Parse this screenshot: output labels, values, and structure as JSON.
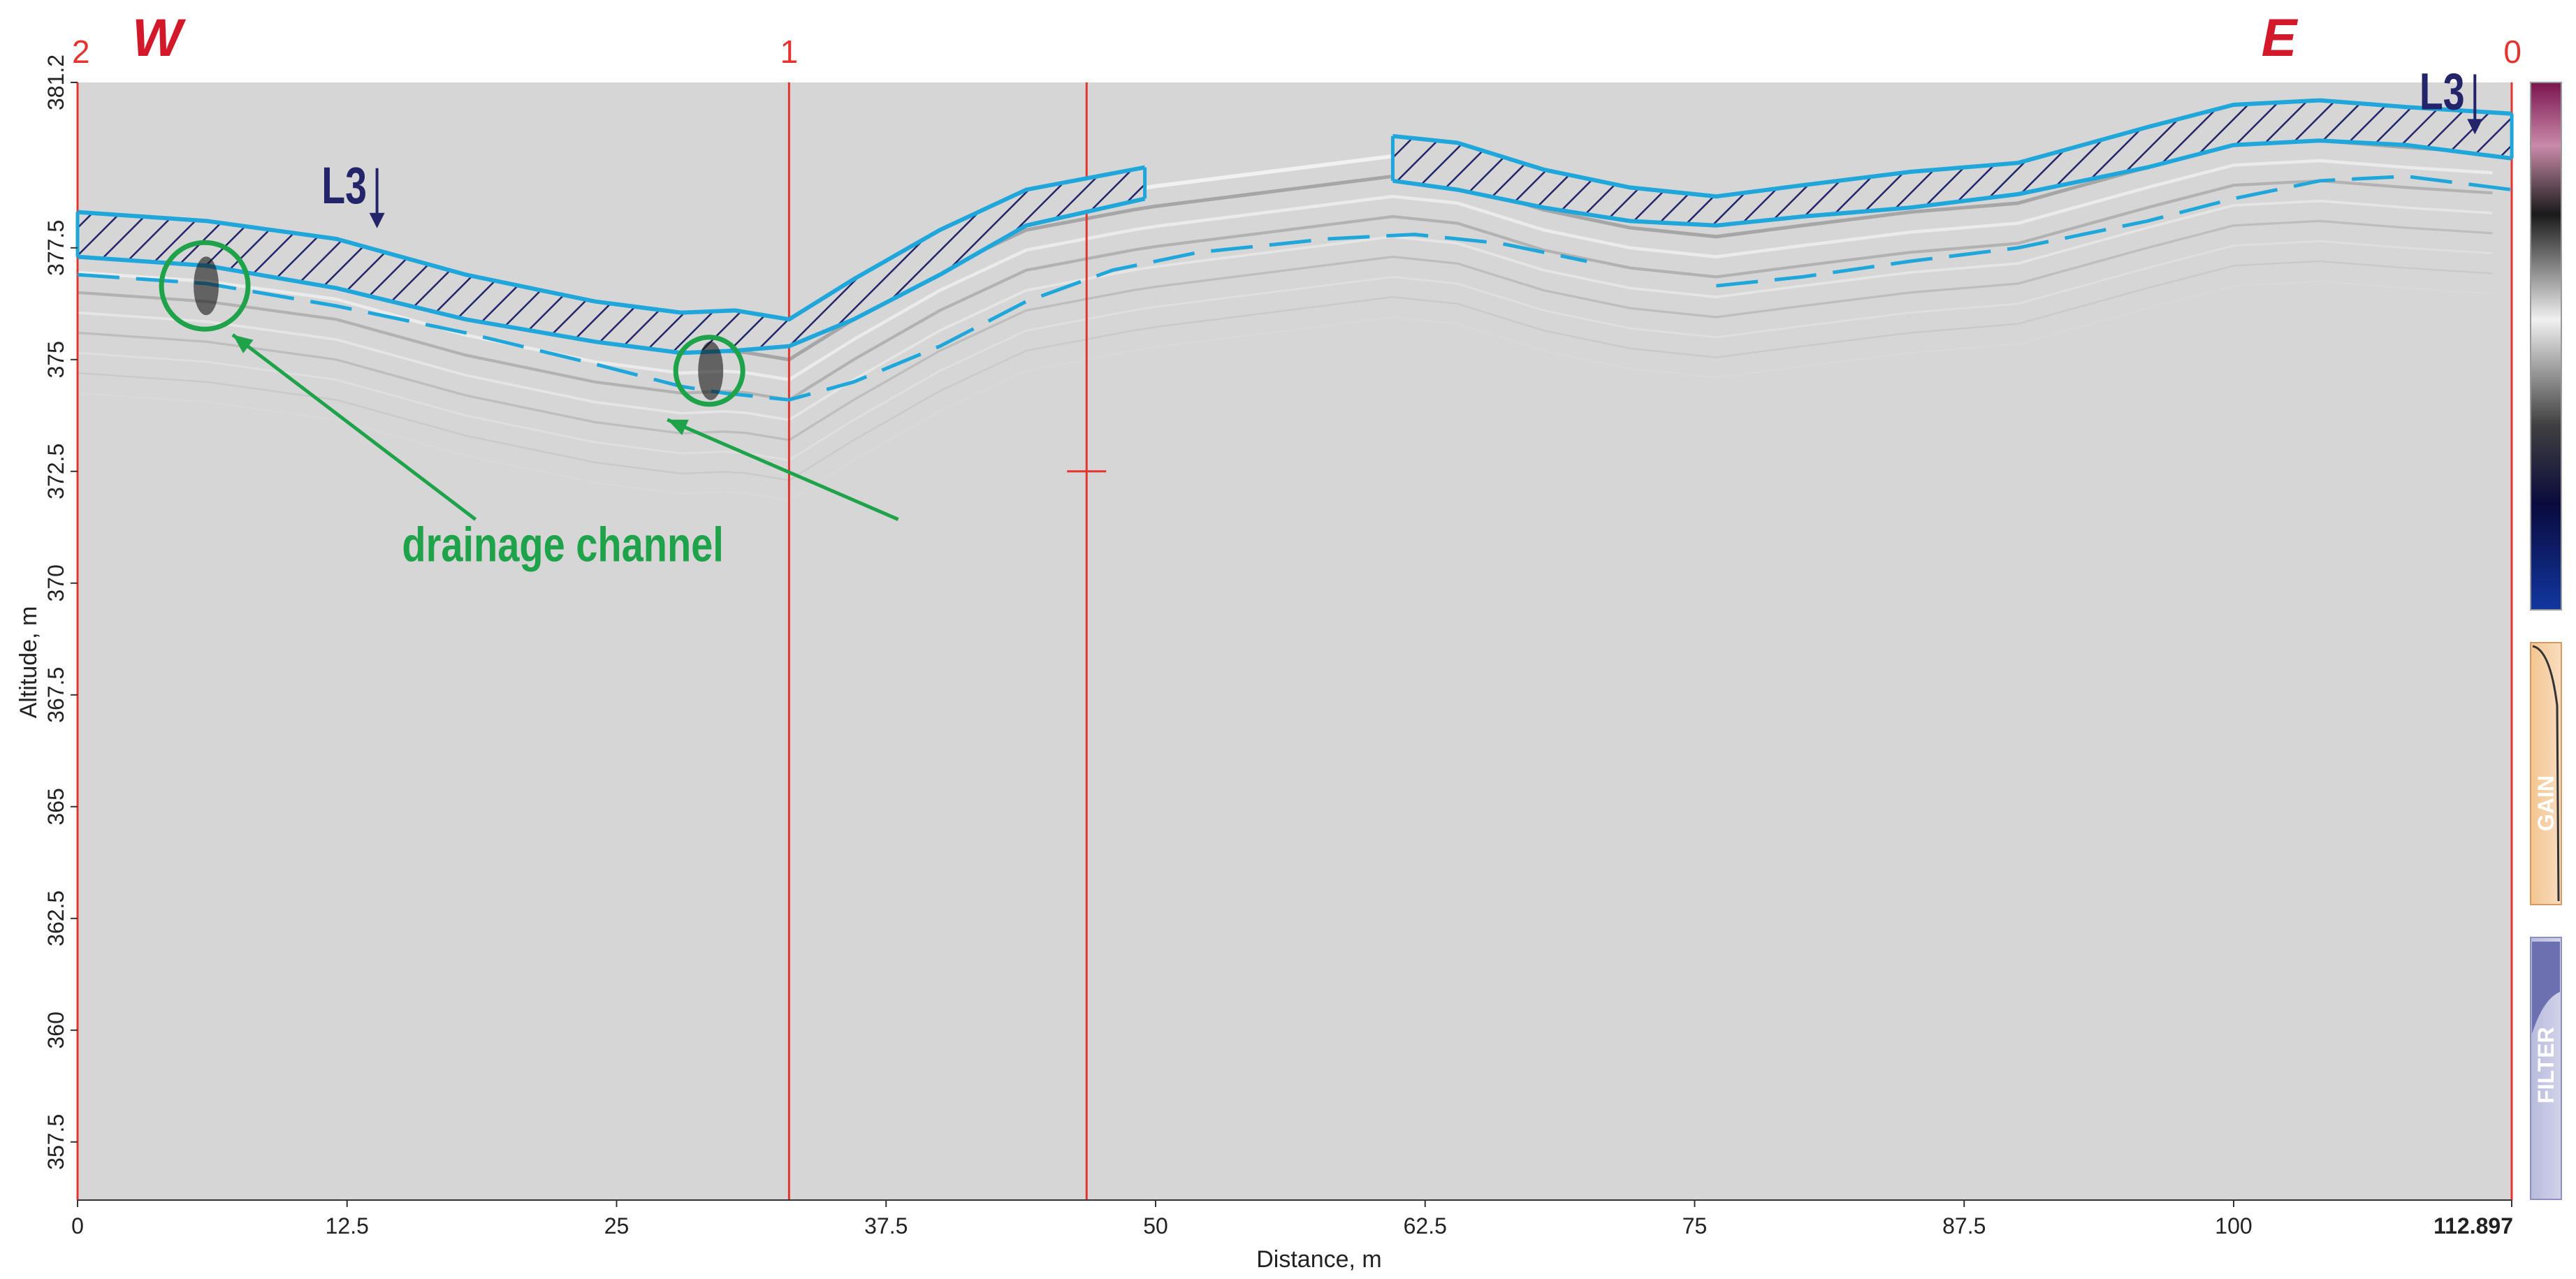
{
  "chart_data": {
    "type": "radargram",
    "xlabel": "Distance, m",
    "ylabel": "Altitude, m",
    "xlim": [
      0,
      112.897
    ],
    "ylim": [
      356.2,
      381.2
    ],
    "x_ticks": [
      "0",
      "12.5",
      "25",
      "37.5",
      "50",
      "62.5",
      "75",
      "87.5",
      "100",
      "112.897"
    ],
    "x_tick_values": [
      0,
      12.5,
      25,
      37.5,
      50,
      62.5,
      75,
      87.5,
      100,
      112.897
    ],
    "y_ticks": [
      "381.2",
      "377.5",
      "375",
      "372.5",
      "370",
      "367.5",
      "365",
      "362.5",
      "360",
      "357.5"
    ],
    "y_tick_values": [
      381.2,
      377.5,
      375,
      372.5,
      370,
      367.5,
      365,
      362.5,
      360,
      357.5
    ],
    "direction_labels": {
      "west": "W",
      "east": "E"
    },
    "markers": [
      {
        "label": "2",
        "x": 0
      },
      {
        "label": "1",
        "x": 33
      },
      {
        "label": "0",
        "x": 112.897
      }
    ],
    "cursor_x": 46.8,
    "cursor_tick_y": 372.5,
    "layer_label": "L3",
    "layer_label_positions": [
      [
        13.5,
        378.5
      ],
      [
        110.8,
        380.6
      ]
    ],
    "surface_segments": [
      [
        [
          0,
          378.3
        ],
        [
          6,
          378.1
        ],
        [
          12,
          377.7
        ],
        [
          18,
          376.9
        ],
        [
          24,
          376.3
        ],
        [
          28,
          376.05
        ],
        [
          30.5,
          376.1
        ],
        [
          33,
          375.9
        ],
        [
          36,
          376.8
        ],
        [
          40,
          377.9
        ],
        [
          44,
          378.8
        ],
        [
          49.5,
          379.3
        ]
      ],
      [
        [
          61,
          380.0
        ],
        [
          64,
          379.85
        ],
        [
          68,
          379.25
        ],
        [
          72,
          378.85
        ],
        [
          76,
          378.65
        ],
        [
          80,
          378.9
        ],
        [
          85,
          379.2
        ],
        [
          90,
          379.4
        ],
        [
          96,
          380.2
        ],
        [
          100,
          380.7
        ],
        [
          104,
          380.8
        ],
        [
          108,
          380.65
        ],
        [
          112.9,
          380.5
        ]
      ]
    ],
    "base_segments": [
      [
        [
          0,
          377.3
        ],
        [
          6,
          377.1
        ],
        [
          12,
          376.6
        ],
        [
          18,
          375.9
        ],
        [
          24,
          375.4
        ],
        [
          28,
          375.15
        ],
        [
          30.5,
          375.2
        ],
        [
          33,
          375.3
        ],
        [
          36,
          375.9
        ],
        [
          40,
          376.9
        ],
        [
          44,
          378.0
        ],
        [
          49.5,
          378.6
        ]
      ],
      [
        [
          61,
          379.0
        ],
        [
          64,
          378.8
        ],
        [
          68,
          378.4
        ],
        [
          72,
          378.1
        ],
        [
          76,
          378.0
        ],
        [
          80,
          378.2
        ],
        [
          85,
          378.4
        ],
        [
          90,
          378.7
        ],
        [
          96,
          379.3
        ],
        [
          100,
          379.8
        ],
        [
          104,
          379.9
        ],
        [
          108,
          379.8
        ],
        [
          112.9,
          379.5
        ]
      ]
    ],
    "dashed_boundary": [
      [
        [
          0,
          376.9
        ],
        [
          6,
          376.7
        ],
        [
          12,
          376.2
        ],
        [
          18,
          375.6
        ],
        [
          24,
          374.9
        ],
        [
          28,
          374.4
        ],
        [
          30,
          374.25
        ],
        [
          33,
          374.1
        ],
        [
          36,
          374.5
        ],
        [
          40,
          375.3
        ],
        [
          44,
          376.3
        ],
        [
          48,
          377.0
        ],
        [
          52,
          377.4
        ],
        [
          58,
          377.7
        ],
        [
          62,
          377.8
        ],
        [
          66,
          377.6
        ],
        [
          70,
          377.2
        ]
      ],
      [
        [
          76,
          376.65
        ],
        [
          80,
          376.85
        ],
        [
          85,
          377.2
        ],
        [
          90,
          377.5
        ],
        [
          96,
          378.1
        ],
        [
          100,
          378.6
        ],
        [
          104,
          379.0
        ],
        [
          108,
          379.1
        ],
        [
          112.9,
          378.8
        ]
      ]
    ],
    "annotations": [
      {
        "text": "drainage channel",
        "x": 17,
        "y": 370.8
      }
    ],
    "drainage_channels": [
      {
        "x": 5.9,
        "y": 376.65
      },
      {
        "x": 29.3,
        "y": 374.75
      }
    ],
    "side_panels": [
      {
        "name": "GAIN"
      },
      {
        "name": "FILTER"
      }
    ],
    "colors": {
      "marker_red": "#e5342f",
      "direction_red": "#d3182a",
      "layer_cyan": "#1fa6da",
      "hatch_navy": "#23246a",
      "annotation_green": "#1ea24a",
      "background_gray": "#d6d6d6"
    }
  }
}
